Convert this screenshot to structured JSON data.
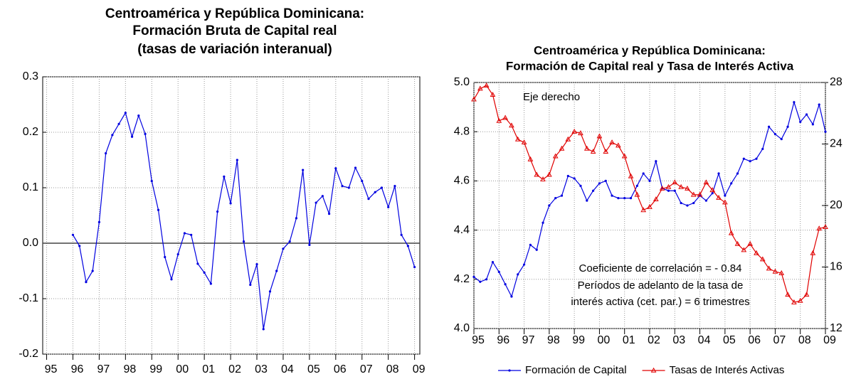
{
  "chart_data": [
    {
      "type": "line",
      "title": [
        "Centroamérica y República Dominicana:",
        "Formación Bruta de Capital real",
        "(tasas de variación interanual)"
      ],
      "x": [
        1996,
        1996.25,
        1996.5,
        1996.75,
        1997,
        1997.25,
        1997.5,
        1997.75,
        1998,
        1998.25,
        1998.5,
        1998.75,
        1999,
        1999.25,
        1999.5,
        1999.75,
        2000,
        2000.25,
        2000.5,
        2000.75,
        2001,
        2001.25,
        2001.5,
        2001.75,
        2002,
        2002.25,
        2002.5,
        2002.75,
        2003,
        2003.25,
        2003.5,
        2003.75,
        2004,
        2004.25,
        2004.5,
        2004.75,
        2005,
        2005.25,
        2005.5,
        2005.75,
        2006,
        2006.25,
        2006.5,
        2006.75,
        2007,
        2007.25,
        2007.5,
        2007.75,
        2008,
        2008.25,
        2008.5,
        2008.75,
        2009
      ],
      "series": [
        {
          "color": "#0000e0",
          "marker": "dot",
          "values": [
            0.015,
            -0.005,
            -0.07,
            -0.05,
            0.038,
            0.162,
            0.195,
            0.215,
            0.235,
            0.192,
            0.23,
            0.197,
            0.112,
            0.06,
            -0.025,
            -0.065,
            -0.02,
            0.018,
            0.015,
            -0.037,
            -0.053,
            -0.073,
            0.057,
            0.12,
            0.072,
            0.15,
            0.003,
            -0.075,
            -0.038,
            -0.155,
            -0.087,
            -0.05,
            -0.01,
            0.003,
            0.045,
            0.132,
            -0.003,
            0.073,
            0.085,
            0.053,
            0.135,
            0.103,
            0.1,
            0.136,
            0.112,
            0.08,
            0.092,
            0.1,
            0.065,
            0.103,
            0.015,
            -0.005,
            -0.043
          ]
        }
      ],
      "xlim": [
        1994.85,
        2009.2
      ],
      "xticks": [
        {
          "value": 1995,
          "label": "95"
        },
        {
          "value": 1996,
          "label": "96"
        },
        {
          "value": 1997,
          "label": "97"
        },
        {
          "value": 1998,
          "label": "98"
        },
        {
          "value": 1999,
          "label": "99"
        },
        {
          "value": 2000,
          "label": "00"
        },
        {
          "value": 2001,
          "label": "01"
        },
        {
          "value": 2002,
          "label": "02"
        },
        {
          "value": 2003,
          "label": "03"
        },
        {
          "value": 2004,
          "label": "04"
        },
        {
          "value": 2005,
          "label": "05"
        },
        {
          "value": 2006,
          "label": "06"
        },
        {
          "value": 2007,
          "label": "07"
        },
        {
          "value": 2008,
          "label": "08"
        },
        {
          "value": 2009,
          "label": "09"
        }
      ],
      "ylim": [
        -0.2,
        0.3
      ],
      "yticks": [
        0.3,
        0.2,
        0.1,
        {
          "value": 0,
          "label": "0.0"
        },
        -0.1,
        -0.2
      ],
      "grid": true,
      "zero_line": true
    },
    {
      "type": "line",
      "title": [
        "Centroamérica y República Dominicana:",
        "Formación de Capital real y Tasa de Interés Activa"
      ],
      "x": [
        1995,
        1995.25,
        1995.5,
        1995.75,
        1996,
        1996.25,
        1996.5,
        1996.75,
        1997,
        1997.25,
        1997.5,
        1997.75,
        1998,
        1998.25,
        1998.5,
        1998.75,
        1999,
        1999.25,
        1999.5,
        1999.75,
        2000,
        2000.25,
        2000.5,
        2000.75,
        2001,
        2001.25,
        2001.5,
        2001.75,
        2002,
        2002.25,
        2002.5,
        2002.75,
        2003,
        2003.25,
        2003.5,
        2003.75,
        2004,
        2004.25,
        2004.5,
        2004.75,
        2005,
        2005.25,
        2005.5,
        2005.75,
        2006,
        2006.25,
        2006.5,
        2006.75,
        2007,
        2007.25,
        2007.5,
        2007.75,
        2008,
        2008.25,
        2008.5,
        2008.75,
        2009
      ],
      "series": [
        {
          "name": "Formación de Capital",
          "color": "#0000e0",
          "marker": "dot",
          "values": [
            4.21,
            4.19,
            4.2,
            4.27,
            4.23,
            4.18,
            4.13,
            4.22,
            4.26,
            4.34,
            4.32,
            4.43,
            4.5,
            4.53,
            4.54,
            4.62,
            4.61,
            4.58,
            4.52,
            4.56,
            4.59,
            4.6,
            4.54,
            4.53,
            4.53,
            4.53,
            4.58,
            4.63,
            4.6,
            4.68,
            4.57,
            4.56,
            4.56,
            4.51,
            4.5,
            4.51,
            4.54,
            4.52,
            4.55,
            4.63,
            4.54,
            4.59,
            4.63,
            4.69,
            4.68,
            4.69,
            4.73,
            4.82,
            4.79,
            4.77,
            4.82,
            4.92,
            4.84,
            4.87,
            4.83,
            4.91,
            4.8
          ]
        },
        {
          "name": "Tasas de Interés Activas",
          "color": "#e00000",
          "marker": "triangle",
          "axis": "y2",
          "values": [
            26.9,
            27.6,
            27.8,
            27.2,
            25.5,
            25.7,
            25.2,
            24.3,
            24.1,
            23,
            22,
            21.7,
            22,
            23.2,
            23.7,
            24.3,
            24.8,
            24.7,
            23.7,
            23.5,
            24.5,
            23.5,
            24.1,
            23.9,
            23.2,
            21.9,
            20.7,
            19.7,
            19.9,
            20.4,
            21.1,
            21.2,
            21.5,
            21.2,
            21.1,
            20.7,
            20.7,
            21.5,
            21,
            20.5,
            20.2,
            18.2,
            17.5,
            17.1,
            17.5,
            16.9,
            16.5,
            15.9,
            15.7,
            15.6,
            14.2,
            13.7,
            13.8,
            14.2,
            16.9,
            18.5,
            18.6
          ]
        }
      ],
      "xlim": [
        1995,
        2009
      ],
      "xticks": [
        {
          "value": 1995,
          "label": "95"
        },
        {
          "value": 1996,
          "label": "96"
        },
        {
          "value": 1997,
          "label": "97"
        },
        {
          "value": 1998,
          "label": "98"
        },
        {
          "value": 1999,
          "label": "99"
        },
        {
          "value": 2000,
          "label": "00"
        },
        {
          "value": 2001,
          "label": "01"
        },
        {
          "value": 2002,
          "label": "02"
        },
        {
          "value": 2003,
          "label": "03"
        },
        {
          "value": 2004,
          "label": "04"
        },
        {
          "value": 2005,
          "label": "05"
        },
        {
          "value": 2006,
          "label": "06"
        },
        {
          "value": 2007,
          "label": "07"
        },
        {
          "value": 2008,
          "label": "08"
        },
        {
          "value": 2009,
          "label": "09"
        }
      ],
      "ylim": [
        4.0,
        5.0
      ],
      "yticks": [
        {
          "value": 5,
          "label": "5.0"
        },
        4.8,
        4.6,
        4.4,
        4.2,
        {
          "value": 4,
          "label": "4.0"
        }
      ],
      "y2lim": [
        12,
        28
      ],
      "y2ticks": [
        28,
        24,
        20,
        16,
        12
      ],
      "grid": true,
      "legend": "bottom",
      "annotations": [
        "Eje derecho",
        "Coeficiente de correlación = - 0.84",
        "Períodos de adelanto de la tasa de",
        "interés activa (cet. par.) = 6 trimestres"
      ]
    }
  ]
}
